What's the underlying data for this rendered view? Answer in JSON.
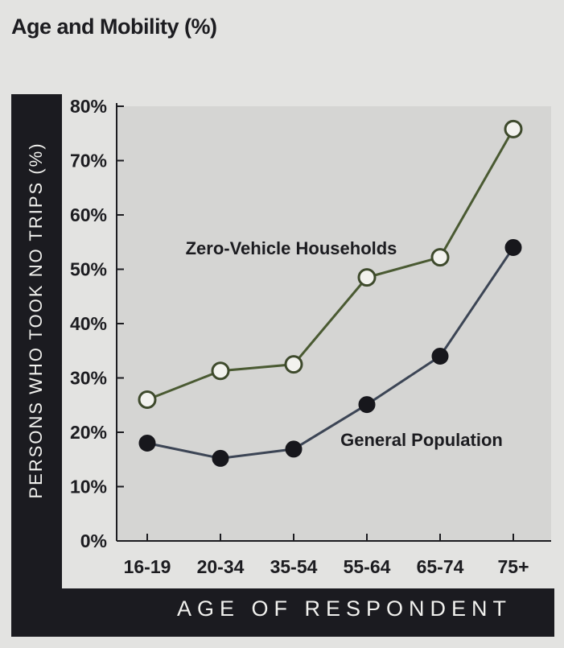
{
  "chart_data": {
    "type": "line",
    "title": "Age and Mobility (%)",
    "xlabel": "AGE OF RESPONDENT",
    "ylabel": "PERSONS WHO TOOK NO TRIPS (%)",
    "categories": [
      "16-19",
      "20-34",
      "35-54",
      "55-64",
      "65-74",
      "75+"
    ],
    "yticks": [
      "0%",
      "10%",
      "20%",
      "30%",
      "40%",
      "50%",
      "60%",
      "70%",
      "80%"
    ],
    "ylim": [
      0,
      80
    ],
    "grid": false,
    "series": [
      {
        "name": "Zero-Vehicle Households",
        "values": [
          26,
          31.3,
          32.5,
          48.5,
          52.2,
          75.8
        ],
        "line_color": "#4a5a32",
        "marker": "hollow"
      },
      {
        "name": "General Population",
        "values": [
          18,
          15.2,
          16.9,
          25.1,
          34,
          54
        ],
        "line_color": "#3c4555",
        "marker": "filled"
      }
    ]
  }
}
